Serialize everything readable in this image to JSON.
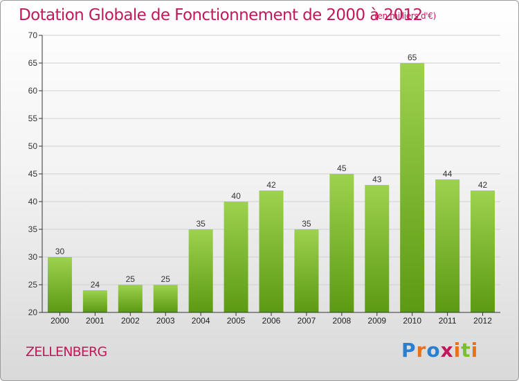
{
  "chart": {
    "title": "Dotation Globale de Fonctionnement de 2000 à 2012",
    "subtitle": "(en milliers d'€)",
    "commune": "ZELLENBERG",
    "logo": {
      "text": "Proxiti",
      "letter_colors": [
        "#2a7fd0",
        "#e8711c",
        "#2a7fd0",
        "#c2185b",
        "#e8711c",
        "#7bbf2a",
        "#e8711c"
      ]
    }
  },
  "chart_data": {
    "type": "bar",
    "categories": [
      "2000",
      "2001",
      "2002",
      "2003",
      "2004",
      "2005",
      "2006",
      "2007",
      "2008",
      "2009",
      "2010",
      "2011",
      "2012"
    ],
    "values": [
      30,
      24,
      25,
      25,
      35,
      40,
      42,
      35,
      45,
      43,
      65,
      44,
      42
    ],
    "value_labels": [
      "30",
      "24",
      "25",
      "25",
      "35",
      "40",
      "42",
      "35",
      "45",
      "43",
      "65",
      "44",
      "42"
    ],
    "title": "Dotation Globale de Fonctionnement de 2000 à 2012",
    "subtitle": "(en milliers d'€)",
    "xlabel": "",
    "ylabel": "",
    "ylim": [
      20,
      70
    ],
    "yticks": [
      20,
      25,
      30,
      35,
      40,
      45,
      50,
      55,
      60,
      65,
      70
    ],
    "ytick_labels": [
      "20",
      "25",
      "30",
      "35",
      "40",
      "45",
      "50",
      "55",
      "60",
      "65",
      "70"
    ],
    "grid": true,
    "legend": "none",
    "colors": {
      "bar_light": "#9ed24e",
      "bar_dark": "#5c9a12",
      "grid": "#d0d0d0",
      "axis": "#333333"
    }
  }
}
